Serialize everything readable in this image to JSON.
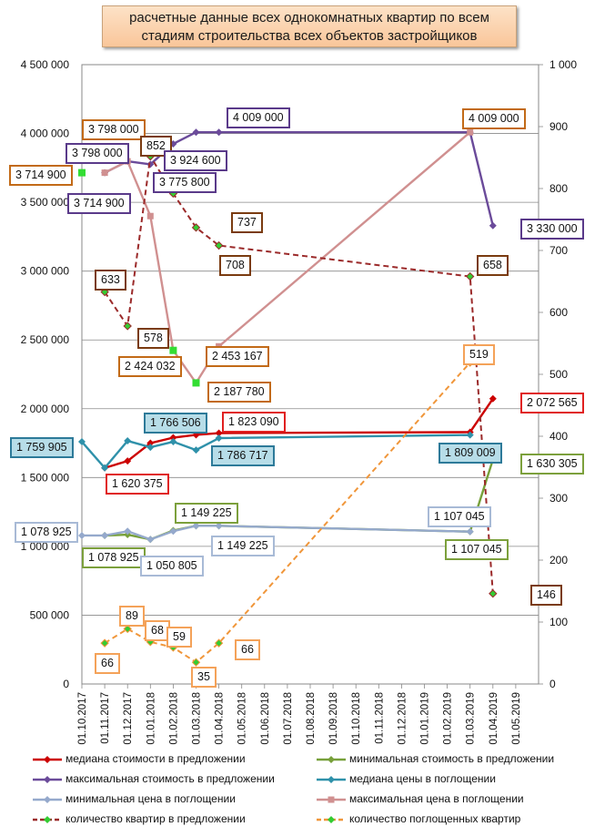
{
  "title": "расчетные данные всех однокомнатных квартир по всем стадиям строительства всех объектов застройщиков",
  "chart_data": {
    "type": "line",
    "x": [
      "01.10.2017",
      "01.11.2017",
      "01.12.2017",
      "01.01.2018",
      "01.02.2018",
      "01.03.2018",
      "01.04.2018",
      "01.05.2018",
      "01.06.2018",
      "01.07.2018",
      "01.08.2018",
      "01.09.2018",
      "01.10.2018",
      "01.11.2018",
      "01.12.2018",
      "01.01.2019",
      "01.02.2019",
      "01.03.2019",
      "01.04.2019",
      "01.05.2019"
    ],
    "y_left": {
      "ylim": [
        0,
        4500000
      ],
      "ticks": [
        "0",
        "500 000",
        "1 000 000",
        "1 500 000",
        "2 000 000",
        "2 500 000",
        "3 000 000",
        "3 500 000",
        "4 000 000",
        "4 500 000"
      ]
    },
    "y_right": {
      "ylim": [
        0,
        1000
      ],
      "ticks": [
        "0",
        "100",
        "200",
        "300",
        "400",
        "500",
        "600",
        "700",
        "800",
        "900",
        "1 000"
      ]
    },
    "grid": true,
    "legend_position": "bottom",
    "series": [
      {
        "name": "медиана стоимости в предложении",
        "color": "#cc0000",
        "axis": "left",
        "marker": "diamond",
        "points": [
          [
            "01.11.2017",
            1570000
          ],
          [
            "01.12.2017",
            1620375
          ],
          [
            "01.01.2018",
            1750000
          ],
          [
            "01.02.2018",
            1790000
          ],
          [
            "01.03.2018",
            1810000
          ],
          [
            "01.04.2018",
            1823090
          ],
          [
            "01.03.2019",
            1830000
          ],
          [
            "01.04.2019",
            2072565
          ]
        ]
      },
      {
        "name": "минимальная стоимость в предложении",
        "color": "#77a03a",
        "axis": "left",
        "marker": "diamond",
        "points": [
          [
            "01.11.2017",
            1078925
          ],
          [
            "01.12.2017",
            1085000
          ],
          [
            "01.01.2018",
            1050805
          ],
          [
            "01.02.2018",
            1115000
          ],
          [
            "01.03.2018",
            1149225
          ],
          [
            "01.04.2018",
            1149225
          ],
          [
            "01.03.2019",
            1107045
          ],
          [
            "01.04.2019",
            1630305
          ]
        ]
      },
      {
        "name": "максимальная стоимость в предложении",
        "color": "#6b4b9a",
        "axis": "left",
        "marker": "diamond",
        "points": [
          [
            "01.11.2017",
            3714900
          ],
          [
            "01.12.2017",
            3798000
          ],
          [
            "01.01.2018",
            3775800
          ],
          [
            "01.02.2018",
            3924600
          ],
          [
            "01.03.2018",
            4009000
          ],
          [
            "01.04.2018",
            4009000
          ],
          [
            "01.03.2019",
            4009000
          ],
          [
            "01.04.2019",
            3330000
          ]
        ]
      },
      {
        "name": "медиана цены в поглощении",
        "color": "#2f91aa",
        "axis": "left",
        "marker": "diamond",
        "points": [
          [
            "01.10.2017",
            1759905
          ],
          [
            "01.11.2017",
            1570000
          ],
          [
            "01.12.2017",
            1766506
          ],
          [
            "01.01.2018",
            1720000
          ],
          [
            "01.02.2018",
            1760000
          ],
          [
            "01.03.2018",
            1700000
          ],
          [
            "01.04.2018",
            1786717
          ],
          [
            "01.03.2019",
            1809009
          ]
        ]
      },
      {
        "name": "минимальная цена в поглощении",
        "color": "#95a9cc",
        "axis": "left",
        "marker": "diamond",
        "points": [
          [
            "01.10.2017",
            1078925
          ],
          [
            "01.11.2017",
            1078925
          ],
          [
            "01.12.2017",
            1110000
          ],
          [
            "01.01.2018",
            1050805
          ],
          [
            "01.02.2018",
            1110000
          ],
          [
            "01.03.2018",
            1149225
          ],
          [
            "01.04.2018",
            1149225
          ],
          [
            "01.03.2019",
            1107045
          ]
        ]
      },
      {
        "name": "максимальная цена в поглощении",
        "color": "#d09090",
        "axis": "left",
        "marker": "square",
        "points": [
          [
            "01.11.2017",
            3714900
          ],
          [
            "01.12.2017",
            3798000
          ],
          [
            "01.01.2018",
            3400000
          ],
          [
            "01.02.2018",
            2424032
          ],
          [
            "01.03.2018",
            2187780
          ],
          [
            "01.04.2018",
            2453167
          ],
          [
            "01.03.2019",
            4009000
          ]
        ]
      },
      {
        "name": "количество квартир в предложении",
        "color": "#9b2a2a",
        "axis": "right",
        "marker": "dot",
        "dashed": true,
        "points": [
          [
            "01.11.2017",
            633
          ],
          [
            "01.12.2017",
            578
          ],
          [
            "01.01.2018",
            852
          ],
          [
            "01.02.2018",
            792
          ],
          [
            "01.03.2018",
            737
          ],
          [
            "01.04.2018",
            708
          ],
          [
            "01.03.2019",
            658
          ],
          [
            "01.04.2019",
            146
          ]
        ]
      },
      {
        "name": "количество поглощенных квартир",
        "color": "#f0963a",
        "axis": "right",
        "marker": "dot",
        "dashed": true,
        "points": [
          [
            "01.11.2017",
            66
          ],
          [
            "01.12.2017",
            89
          ],
          [
            "01.01.2018",
            68
          ],
          [
            "01.02.2018",
            59
          ],
          [
            "01.03.2018",
            35
          ],
          [
            "01.04.2018",
            66
          ],
          [
            "01.03.2019",
            519
          ]
        ]
      }
    ],
    "extra_markers": [
      {
        "color": "#33dd33",
        "axis": "left",
        "points": [
          [
            "01.10.2017",
            3714900
          ],
          [
            "01.02.2018",
            2424032
          ],
          [
            "01.03.2018",
            2187780
          ]
        ]
      }
    ],
    "annotations": [
      {
        "text": "3 714 900",
        "style": "orange"
      },
      {
        "text": "3 798 000",
        "style": "orange"
      },
      {
        "text": "3 798 000",
        "style": "purple"
      },
      {
        "text": "3 714 900",
        "style": "purple"
      },
      {
        "text": "852",
        "style": "brown"
      },
      {
        "text": "4 009 000",
        "style": "purple"
      },
      {
        "text": "3 924 600",
        "style": "purple"
      },
      {
        "text": "3 775 800",
        "style": "purple"
      },
      {
        "text": "4 009 000",
        "style": "orange"
      },
      {
        "text": "737",
        "style": "brown"
      },
      {
        "text": "708",
        "style": "brown"
      },
      {
        "text": "3 330 000",
        "style": "purple"
      },
      {
        "text": "633",
        "style": "brown"
      },
      {
        "text": "658",
        "style": "brown"
      },
      {
        "text": "578",
        "style": "brown"
      },
      {
        "text": "2 453 167",
        "style": "orange"
      },
      {
        "text": "2 424 032",
        "style": "orange"
      },
      {
        "text": "519",
        "style": "lightorange"
      },
      {
        "text": "2 187 780",
        "style": "orange"
      },
      {
        "text": "1 766 506",
        "style": "teal"
      },
      {
        "text": "1 823 090",
        "style": "red"
      },
      {
        "text": "2 072 565",
        "style": "red"
      },
      {
        "text": "1 759 905",
        "style": "teal"
      },
      {
        "text": "1 786 717",
        "style": "teal"
      },
      {
        "text": "1 809 009",
        "style": "teal"
      },
      {
        "text": "1 620 375",
        "style": "red"
      },
      {
        "text": "1 630 305",
        "style": "green"
      },
      {
        "text": "1 149 225",
        "style": "green"
      },
      {
        "text": "1 107 045",
        "style": "lightblue"
      },
      {
        "text": "1 078 925",
        "style": "lightblue"
      },
      {
        "text": "1 149 225",
        "style": "lightblue"
      },
      {
        "text": "1 078 925",
        "style": "green"
      },
      {
        "text": "1 050 805",
        "style": "lightblue"
      },
      {
        "text": "1 107 045",
        "style": "green"
      },
      {
        "text": "89",
        "style": "lightorange"
      },
      {
        "text": "68",
        "style": "lightorange"
      },
      {
        "text": "59",
        "style": "lightorange"
      },
      {
        "text": "66",
        "style": "lightorange"
      },
      {
        "text": "66",
        "style": "lightorange"
      },
      {
        "text": "35",
        "style": "lightorange"
      },
      {
        "text": "146",
        "style": "brown"
      }
    ]
  }
}
